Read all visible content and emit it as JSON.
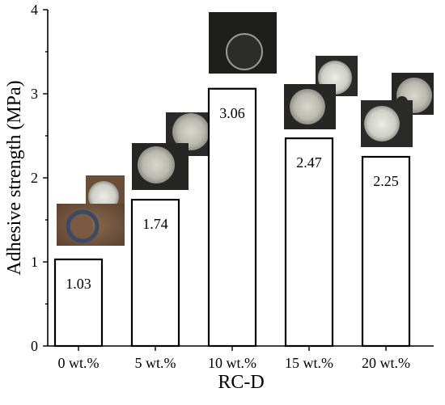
{
  "chart_data": {
    "type": "bar",
    "categories": [
      "0 wt.%",
      "5 wt.%",
      "10 wt.%",
      "15 wt.%",
      "20 wt.%"
    ],
    "values": [
      1.03,
      1.74,
      3.06,
      2.47,
      2.25
    ],
    "value_labels": [
      "1.03",
      "1.74",
      "3.06",
      "2.47",
      "2.25"
    ],
    "xlabel": "RC-D",
    "ylabel": "Adhesive strength (MPa)",
    "ylim": [
      0,
      4
    ],
    "yticks": [
      0,
      1,
      2,
      3,
      4
    ],
    "ytick_labels": [
      "0",
      "1",
      "2",
      "3",
      "4"
    ],
    "grid": false,
    "legend": "none",
    "bar_fill": "#ffffff",
    "bar_stroke": "#000000",
    "inset_photos": "fracture-surface photos above each bar"
  }
}
